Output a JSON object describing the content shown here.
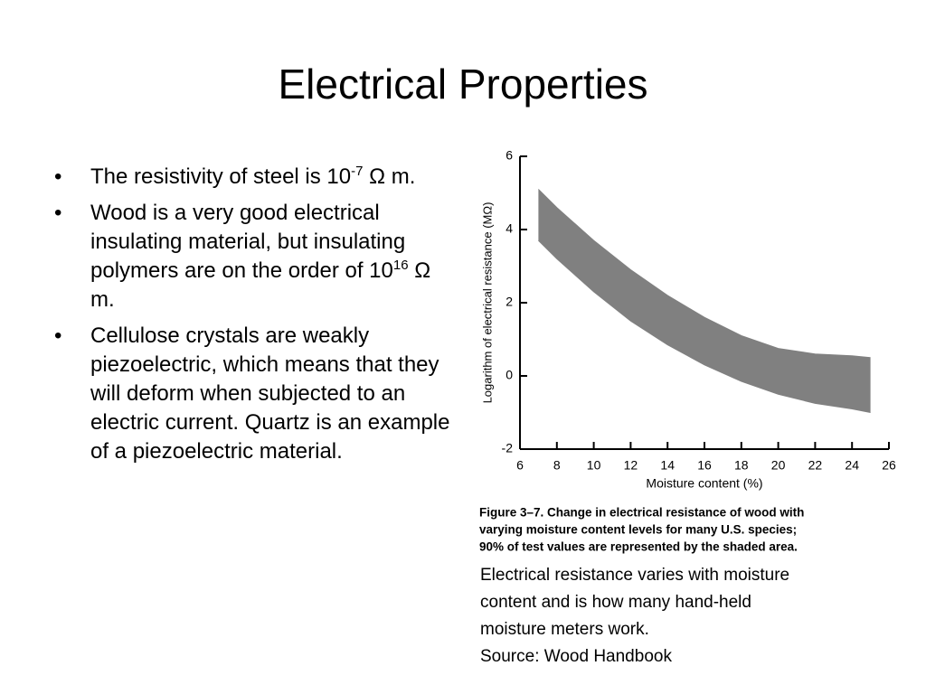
{
  "title": "Electrical Properties",
  "bullets": [
    {
      "text": "The resistivity of steel is 10",
      "sup": "-7",
      "after": "Ω m."
    },
    {
      "text": "Wood is a very good electrical insulating material, but insulating polymers are on the order of 10",
      "sup": "16",
      "after": "Ω m."
    },
    {
      "text": "Cellulose crystals are weakly piezoelectric, which means that they will deform  when subjected to an electric current.  Quartz is an example of a piezoelectric material."
    }
  ],
  "chart_data": {
    "type": "band",
    "x_label": "Moisture content (%)",
    "y_label": "Logarithm of electrical resistance (MΩ)",
    "x": [
      7,
      8,
      10,
      12,
      14,
      16,
      18,
      20,
      22,
      24,
      25
    ],
    "series": [
      {
        "color": "#808080",
        "values": [
          5.1,
          4.6,
          3.7,
          2.9,
          2.2,
          1.6,
          1.1,
          0.75,
          0.6,
          0.55,
          0.5
        ]
      },
      {
        "color": "#808080",
        "values": [
          3.7,
          3.2,
          2.3,
          1.5,
          0.85,
          0.3,
          -0.15,
          -0.5,
          -0.75,
          -0.9,
          -1.0
        ]
      }
    ],
    "xlim": [
      6,
      26
    ],
    "xticks": [
      6,
      8,
      10,
      12,
      14,
      16,
      18,
      20,
      22,
      24,
      26
    ],
    "ylim": [
      -2,
      6
    ],
    "yticks": [
      -2,
      0,
      2,
      4,
      6
    ],
    "caption": [
      "Figure 3–7. Change in electrical resistance of wood with",
      "varying moisture content levels for many U.S. species;",
      "90% of test values are represented by the shaded area."
    ]
  },
  "note": [
    "Electrical resistance varies with moisture",
    "content and is how many hand-held",
    "moisture meters work.",
    "Source: Wood Handbook"
  ]
}
